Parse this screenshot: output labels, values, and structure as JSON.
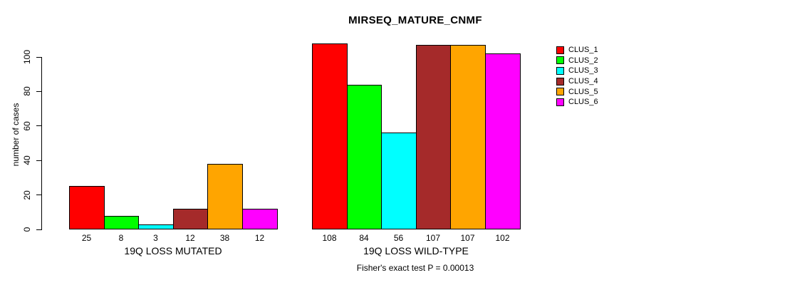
{
  "figure": {
    "title": "MIRSEQ_MATURE_CNMF",
    "footer": "Fisher's exact test P = 0.00013"
  },
  "y_axis": {
    "label": "number of cases",
    "ticks": [
      0,
      20,
      40,
      60,
      80,
      100
    ]
  },
  "legend": {
    "position": "right",
    "items": [
      {
        "label": "CLUS_1",
        "color": "#FF0000"
      },
      {
        "label": "CLUS_2",
        "color": "#00FF00"
      },
      {
        "label": "CLUS_3",
        "color": "#00FFFF"
      },
      {
        "label": "CLUS_4",
        "color": "#A52A2A"
      },
      {
        "label": "CLUS_5",
        "color": "#FFA500"
      },
      {
        "label": "CLUS_6",
        "color": "#FF00FF"
      }
    ]
  },
  "chart_data": {
    "type": "bar",
    "title": "MIRSEQ_MATURE_CNMF",
    "ylabel": "number of cases",
    "ylim": [
      0,
      100
    ],
    "y_ticks": [
      0,
      20,
      40,
      60,
      80,
      100
    ],
    "grid": false,
    "legend_position": "right",
    "clusters": [
      "CLUS_1",
      "CLUS_2",
      "CLUS_3",
      "CLUS_4",
      "CLUS_5",
      "CLUS_6"
    ],
    "colors": [
      "#FF0000",
      "#00FF00",
      "#00FFFF",
      "#A52A2A",
      "#FFA500",
      "#FF00FF"
    ],
    "groups": [
      {
        "label": "19Q LOSS MUTATED",
        "values": [
          25,
          8,
          3,
          12,
          38,
          12
        ]
      },
      {
        "label": "19Q LOSS WILD-TYPE",
        "values": [
          108,
          84,
          56,
          107,
          107,
          102
        ]
      }
    ],
    "annotation": "Fisher's exact test P = 0.00013"
  }
}
